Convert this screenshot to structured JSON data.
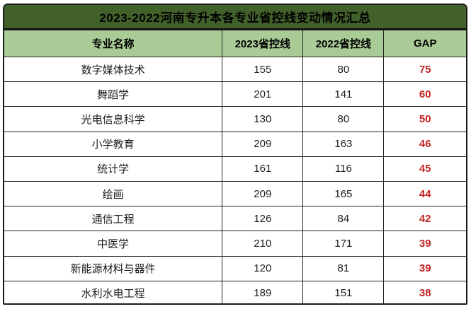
{
  "title": "2023-2022河南专升本各专业省控线变动情况汇总",
  "colors": {
    "title_bar_bg": "#41602a",
    "header_row_bg": "#a9cc96",
    "gap_text": "#c32222",
    "border": "#1f1f1f",
    "body_text": "#1c1c1c",
    "title_text": "#000000"
  },
  "table": {
    "headers": [
      "专业名称",
      "2023省控线",
      "2022省控线",
      "GAP"
    ],
    "rows": [
      {
        "major": "数字媒体技术",
        "line_2023": "155",
        "line_2022": "80",
        "gap": "75"
      },
      {
        "major": "舞蹈学",
        "line_2023": "201",
        "line_2022": "141",
        "gap": "60"
      },
      {
        "major": "光电信息科学",
        "line_2023": "130",
        "line_2022": "80",
        "gap": "50"
      },
      {
        "major": "小学教育",
        "line_2023": "209",
        "line_2022": "163",
        "gap": "46"
      },
      {
        "major": "统计学",
        "line_2023": "161",
        "line_2022": "116",
        "gap": "45"
      },
      {
        "major": "绘画",
        "line_2023": "209",
        "line_2022": "165",
        "gap": "44"
      },
      {
        "major": "通信工程",
        "line_2023": "126",
        "line_2022": "84",
        "gap": "42"
      },
      {
        "major": "中医学",
        "line_2023": "210",
        "line_2022": "171",
        "gap": "39"
      },
      {
        "major": "新能源材料与器件",
        "line_2023": "120",
        "line_2022": "81",
        "gap": "39"
      },
      {
        "major": "水利水电工程",
        "line_2023": "189",
        "line_2022": "151",
        "gap": "38"
      }
    ]
  },
  "chart_data": {
    "type": "table",
    "title": "2023-2022河南专升本各专业省控线变动情况汇总",
    "columns": [
      "专业名称",
      "2023省控线",
      "2022省控线",
      "GAP"
    ],
    "categories": [
      "数字媒体技术",
      "舞蹈学",
      "光电信息科学",
      "小学教育",
      "统计学",
      "绘画",
      "通信工程",
      "中医学",
      "新能源材料与器件",
      "水利水电工程"
    ],
    "series": [
      {
        "name": "2023省控线",
        "values": [
          155,
          201,
          130,
          209,
          161,
          209,
          126,
          210,
          120,
          189
        ]
      },
      {
        "name": "2022省控线",
        "values": [
          80,
          141,
          80,
          163,
          116,
          165,
          84,
          171,
          81,
          151
        ]
      },
      {
        "name": "GAP",
        "values": [
          75,
          60,
          50,
          46,
          45,
          44,
          42,
          39,
          39,
          38
        ]
      }
    ],
    "layout_hints": {
      "header_fill": "#a9cc96",
      "title_fill": "#41602a",
      "gap_color": "#c32222",
      "grid": true
    }
  }
}
